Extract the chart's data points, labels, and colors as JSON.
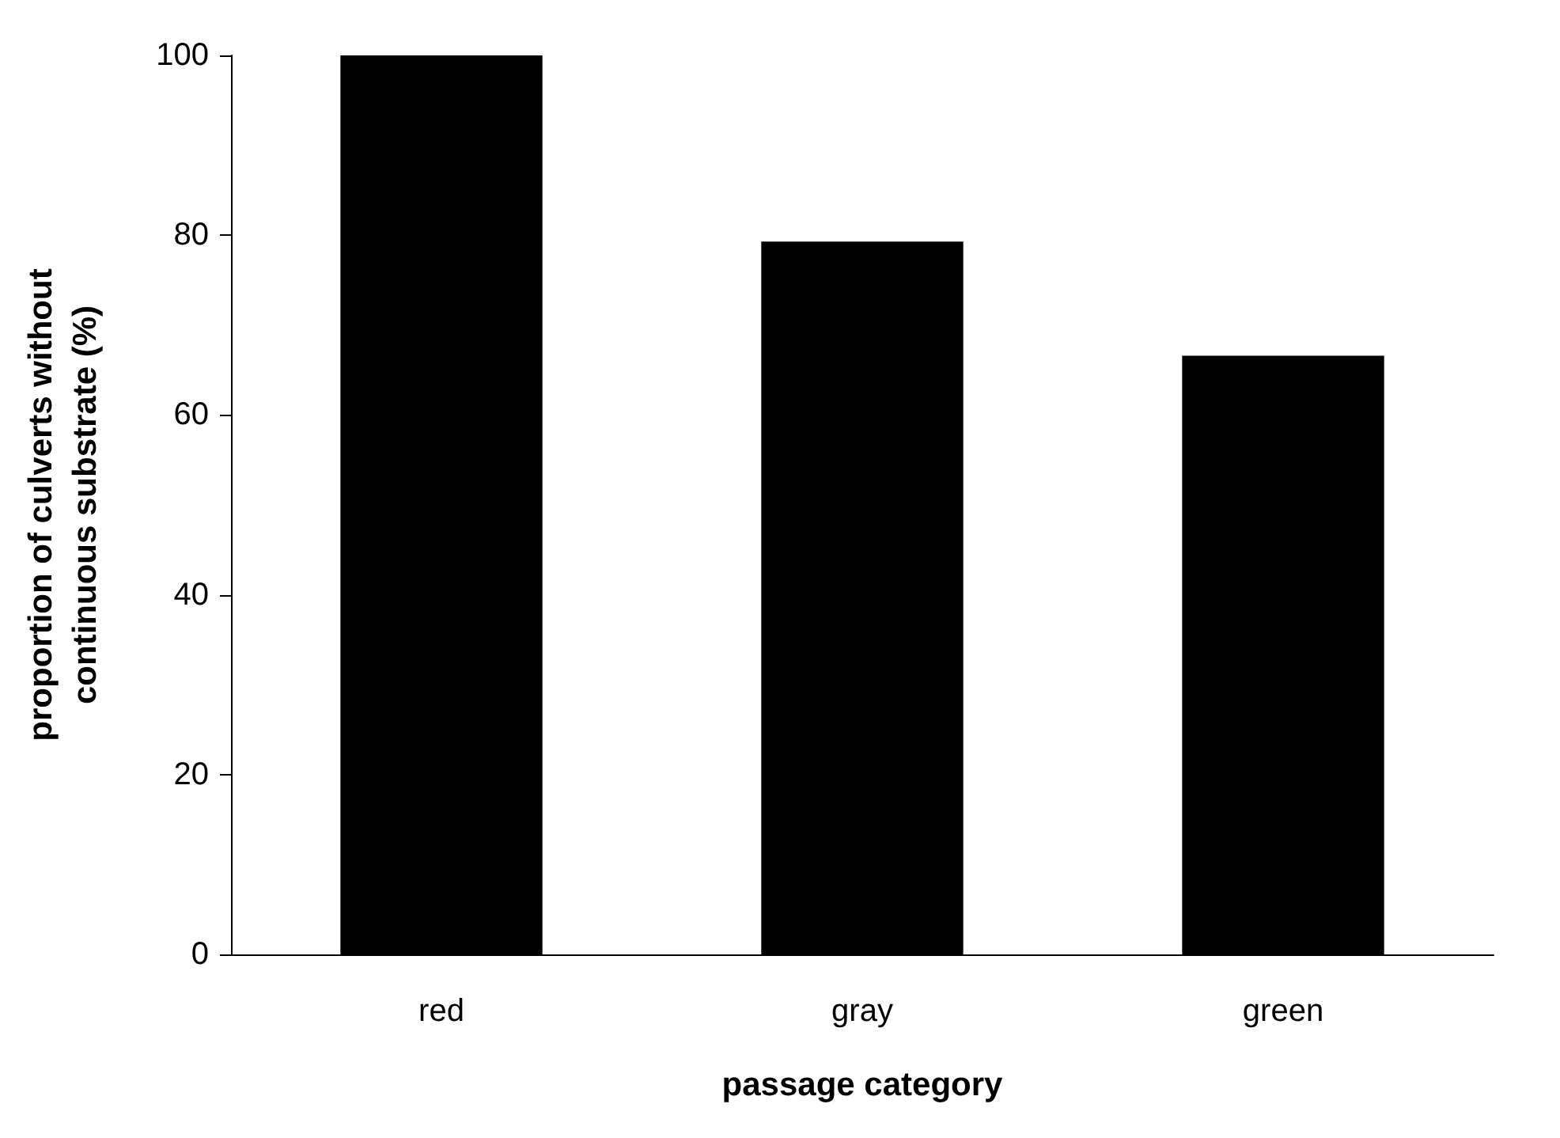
{
  "chart_data": {
    "type": "bar",
    "xlabel": "passage category",
    "ylabel": "proportion of culverts without\ncontinuous substrate (%)",
    "categories": [
      "red",
      "gray",
      "green"
    ],
    "values": [
      100,
      79.3,
      66.6
    ],
    "color": "#000000",
    "ylim": [
      0,
      100
    ],
    "yticks": [
      0,
      20,
      40,
      60,
      80,
      100
    ],
    "grid": false
  }
}
